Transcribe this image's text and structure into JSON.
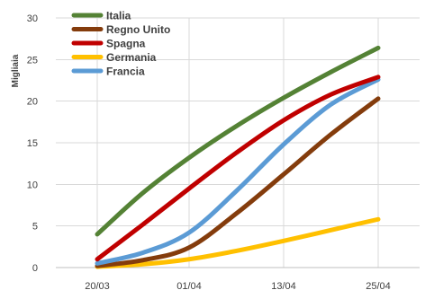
{
  "chart_data": {
    "type": "line",
    "title": "",
    "xlabel": "",
    "ylabel": "Migliaia",
    "categories": [
      "20/03",
      "01/04",
      "13/04",
      "25/04"
    ],
    "ylim": [
      0,
      30
    ],
    "yticks": [
      0,
      5,
      10,
      15,
      20,
      25,
      30
    ],
    "grid": true,
    "legend_position": "top-left",
    "series": [
      {
        "name": "Italia",
        "color": "#548235",
        "x": [
          "20/03",
          "26/03",
          "01/04",
          "07/04",
          "13/04",
          "19/04",
          "25/04"
        ],
        "values": [
          4.0,
          9.0,
          13.2,
          17.0,
          20.4,
          23.5,
          26.4
        ]
      },
      {
        "name": "Regno Unito",
        "color": "#843c0c",
        "x": [
          "20/03",
          "26/03",
          "01/04",
          "07/04",
          "13/04",
          "19/04",
          "25/04"
        ],
        "values": [
          0.2,
          0.9,
          2.4,
          6.5,
          11.2,
          16.0,
          20.3
        ]
      },
      {
        "name": "Spagna",
        "color": "#c00000",
        "x": [
          "20/03",
          "26/03",
          "01/04",
          "07/04",
          "13/04",
          "19/04",
          "25/04"
        ],
        "values": [
          1.0,
          5.2,
          9.5,
          13.8,
          17.7,
          20.8,
          22.9
        ]
      },
      {
        "name": "Germania",
        "color": "#ffc000",
        "x": [
          "20/03",
          "26/03",
          "01/04",
          "07/04",
          "13/04",
          "19/04",
          "25/04"
        ],
        "values": [
          0.1,
          0.4,
          1.0,
          2.0,
          3.2,
          4.5,
          5.8
        ]
      },
      {
        "name": "Francia",
        "color": "#5b9bd5",
        "x": [
          "20/03",
          "26/03",
          "01/04",
          "07/04",
          "13/04",
          "19/04",
          "25/04"
        ],
        "values": [
          0.5,
          1.8,
          4.2,
          9.2,
          14.8,
          19.6,
          22.6
        ]
      }
    ]
  }
}
